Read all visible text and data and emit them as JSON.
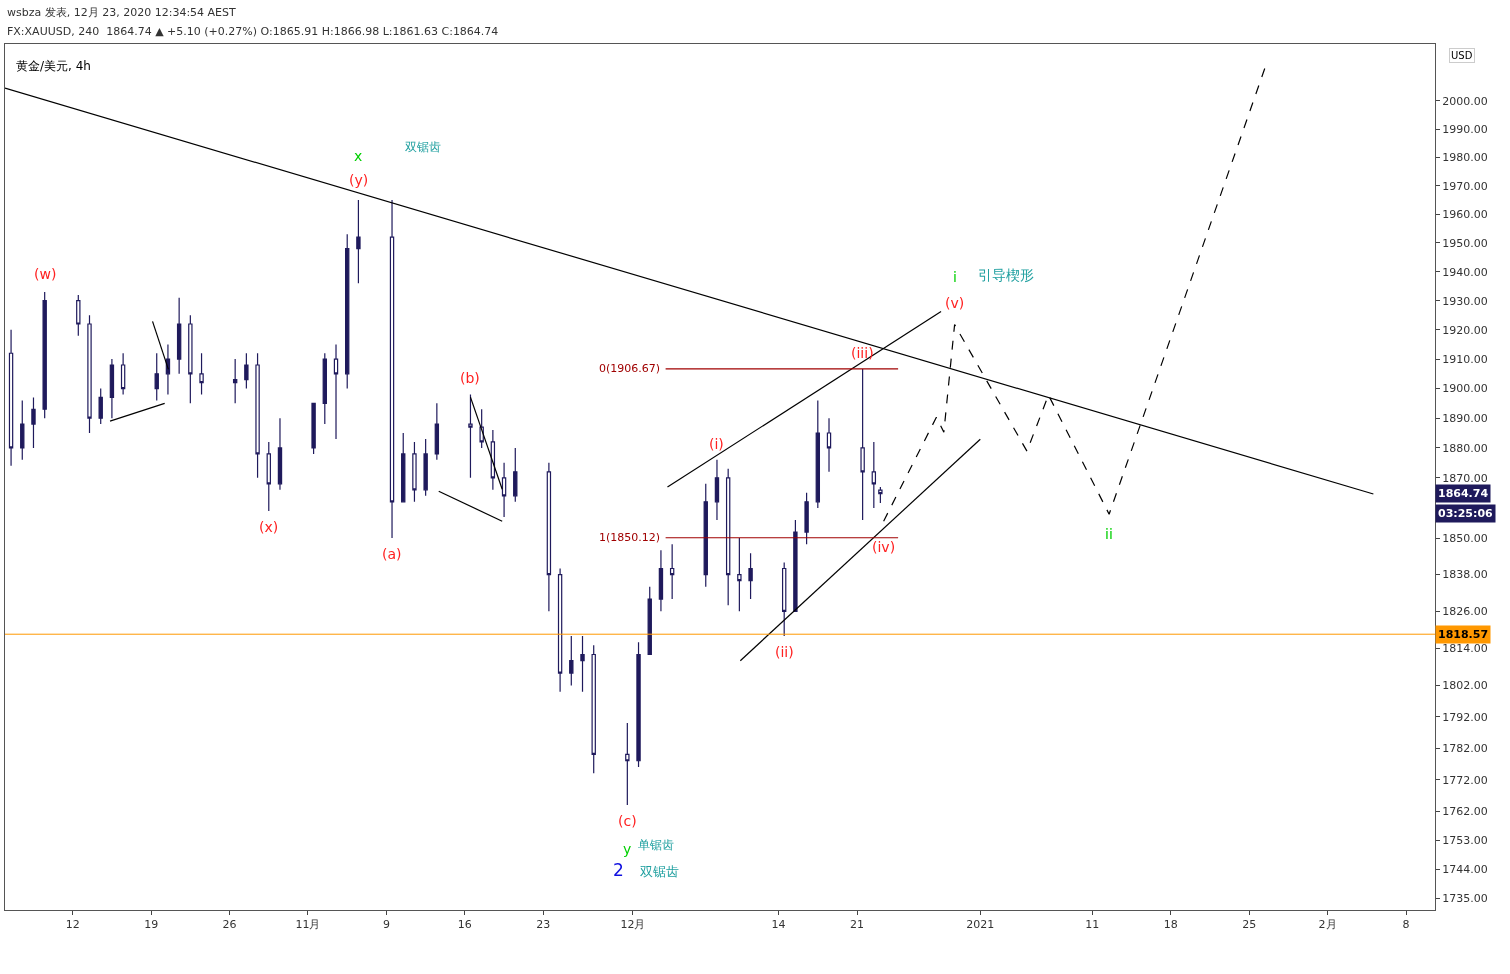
{
  "chart_data": {
    "type": "candlestick",
    "title": "黄金/美元, 4h",
    "ylabel": "USD",
    "log": "y",
    "x": [
      "2020-10-06T12:00",
      "2020-10-07T12:00",
      "2020-10-08T12:00",
      "2020-10-09T12:00",
      "2020-10-12T12:00",
      "2020-10-13T12:00",
      "2020-10-14T12:00",
      "2020-10-15T12:00",
      "2020-10-16T12:00",
      "2020-10-19T12:00",
      "2020-10-20T12:00",
      "2020-10-21T12:00",
      "2020-10-22T12:00",
      "2020-10-23T12:00",
      "2020-10-26T12:00",
      "2020-10-27T12:00",
      "2020-10-28T12:00",
      "2020-10-29T12:00",
      "2020-10-30T12:00",
      "2020-11-02T12:00",
      "2020-11-03T12:00",
      "2020-11-04T12:00",
      "2020-11-05T12:00",
      "2020-11-06T12:00",
      "2020-11-09T12:00",
      "2020-11-10T12:00",
      "2020-11-11T12:00",
      "2020-11-12T12:00",
      "2020-11-13T12:00",
      "2020-11-16T12:00",
      "2020-11-17T12:00",
      "2020-11-18T12:00",
      "2020-11-19T12:00",
      "2020-11-20T12:00",
      "2020-11-23T12:00",
      "2020-11-24T12:00",
      "2020-11-25T12:00",
      "2020-11-26T12:00",
      "2020-11-27T12:00",
      "2020-11-30T12:00",
      "2020-12-01T12:00",
      "2020-12-02T12:00",
      "2020-12-03T12:00",
      "2020-12-04T12:00",
      "2020-12-07T12:00",
      "2020-12-08T12:00",
      "2020-12-09T12:00",
      "2020-12-10T12:00",
      "2020-12-11T12:00",
      "2020-12-14T12:00",
      "2020-12-15T12:00",
      "2020-12-16T12:00",
      "2020-12-17T12:00",
      "2020-12-18T12:00",
      "2020-12-21T12:00",
      "2020-12-22T12:00",
      "2020-12-23T02:00"
    ],
    "ohlc": [
      [
        1912,
        1920,
        1874,
        1880
      ],
      [
        1880,
        1896,
        1876,
        1888
      ],
      [
        1888,
        1897,
        1880,
        1893
      ],
      [
        1893,
        1933,
        1890,
        1930
      ],
      [
        1930,
        1932,
        1918,
        1922
      ],
      [
        1922,
        1925,
        1885,
        1890
      ],
      [
        1890,
        1900,
        1888,
        1897
      ],
      [
        1897,
        1910,
        1890,
        1908
      ],
      [
        1908,
        1912,
        1898,
        1900
      ],
      [
        1900,
        1912,
        1896,
        1905
      ],
      [
        1905,
        1915,
        1898,
        1910
      ],
      [
        1910,
        1931,
        1905,
        1922
      ],
      [
        1922,
        1925,
        1895,
        1905
      ],
      [
        1905,
        1912,
        1898,
        1902
      ],
      [
        1902,
        1910,
        1895,
        1903
      ],
      [
        1903,
        1912,
        1900,
        1908
      ],
      [
        1908,
        1912,
        1870,
        1878
      ],
      [
        1878,
        1882,
        1859,
        1868
      ],
      [
        1868,
        1890,
        1866,
        1880
      ],
      [
        1880,
        1895,
        1878,
        1895
      ],
      [
        1895,
        1912,
        1888,
        1910
      ],
      [
        1910,
        1915,
        1883,
        1905
      ],
      [
        1905,
        1953,
        1900,
        1948
      ],
      [
        1948,
        1965,
        1936,
        1952
      ],
      [
        1952,
        1965,
        1850,
        1862
      ],
      [
        1862,
        1885,
        1862,
        1878
      ],
      [
        1878,
        1882,
        1862,
        1866
      ],
      [
        1866,
        1883,
        1864,
        1878
      ],
      [
        1878,
        1895,
        1876,
        1888
      ],
      [
        1888,
        1898,
        1870,
        1887
      ],
      [
        1887,
        1893,
        1880,
        1882
      ],
      [
        1882,
        1886,
        1866,
        1870
      ],
      [
        1870,
        1875,
        1857,
        1864
      ],
      [
        1864,
        1880,
        1862,
        1872
      ],
      [
        1872,
        1875,
        1826,
        1838
      ],
      [
        1838,
        1840,
        1800,
        1806
      ],
      [
        1806,
        1818,
        1802,
        1810
      ],
      [
        1810,
        1818,
        1800,
        1812
      ],
      [
        1812,
        1815,
        1774,
        1780
      ],
      [
        1780,
        1790,
        1764,
        1778
      ],
      [
        1778,
        1816,
        1776,
        1812
      ],
      [
        1812,
        1834,
        1812,
        1830
      ],
      [
        1830,
        1846,
        1826,
        1840
      ],
      [
        1840,
        1848,
        1830,
        1838
      ],
      [
        1838,
        1868,
        1834,
        1862
      ],
      [
        1862,
        1876,
        1856,
        1870
      ],
      [
        1870,
        1873,
        1828,
        1838
      ],
      [
        1838,
        1850,
        1826,
        1836
      ],
      [
        1836,
        1845,
        1830,
        1840
      ],
      [
        1840,
        1842,
        1818,
        1826
      ],
      [
        1826,
        1856,
        1826,
        1852
      ],
      [
        1852,
        1865,
        1848,
        1862
      ],
      [
        1862,
        1896,
        1860,
        1885
      ],
      [
        1885,
        1890,
        1872,
        1880
      ],
      [
        1880,
        1906.67,
        1856,
        1872
      ],
      [
        1872,
        1882,
        1860,
        1868
      ],
      [
        1865.91,
        1866.98,
        1861.63,
        1864.74
      ]
    ],
    "series": [
      {
        "type": "line",
        "color": "#000000",
        "x": [
          "2020-10-05T23:00",
          "2021-02-05T02:00"
        ],
        "values": [
          2004.6,
          1864.6
        ]
      },
      {
        "type": "line",
        "color": "#000000",
        "x": [
          "2020-12-04T02:00",
          "2020-12-28T12:00"
        ],
        "values": [
          1866.9,
          1926.3
        ]
      },
      {
        "type": "line",
        "color": "#000000",
        "x": [
          "2020-12-10T14:00",
          "2021-01-01T00:00"
        ],
        "values": [
          1810.0,
          1882.9
        ]
      },
      {
        "type": "line",
        "color": "#000000",
        "x": [
          "2020-10-15T08:00",
          "2020-10-20T05:00"
        ],
        "values": [
          1889.0,
          1895.0
        ]
      },
      {
        "type": "line",
        "color": "#000000",
        "x": [
          "2020-10-19T03:00",
          "2020-10-20T13:00"
        ],
        "values": [
          1922.9,
          1906.5
        ]
      },
      {
        "type": "line",
        "color": "#000000",
        "x": [
          "2020-11-13T16:00",
          "2020-11-19T08:00"
        ],
        "values": [
          1865.5,
          1855.6
        ]
      },
      {
        "type": "line",
        "color": "#000000",
        "x": [
          "2020-11-16T12:00",
          "2020-11-19T08:00"
        ],
        "values": [
          1897.1,
          1866.2
        ]
      },
      {
        "type": "line",
        "color": "#a00000",
        "x": [
          "2020-12-03T22:00",
          "2020-12-24T16:00"
        ],
        "values": [
          1906.67,
          1906.67
        ]
      },
      {
        "type": "line",
        "color": "#a00000",
        "x": [
          "2020-12-03T22:00",
          "2020-12-24T16:00"
        ],
        "values": [
          1850.12,
          1850.12
        ]
      },
      {
        "type": "line",
        "color": "#000000",
        "line_style": "dashed",
        "x": [
          "2020-12-23T09:00",
          "2020-12-28T02:00",
          "2020-12-28T18:00",
          "2020-12-29T17:00",
          "2021-01-05T04:00",
          "2021-01-07T02:00",
          "2021-01-12T12:00",
          "2021-01-26T12:00"
        ],
        "values": [
          1855.6,
          1890.3,
          1885.3,
          1921.8,
          1878.9,
          1897.8,
          1857.9,
          2012.9
        ]
      }
    ],
    "ref_lines": [
      {
        "axis": "y",
        "value": 1818.57,
        "label": "1818.57",
        "color": "#ff9800"
      }
    ],
    "xlim": [
      "2020-10-05T23:00",
      "2021-02-10T14:00"
    ],
    "xticks": [
      {
        "value": "2020-10-12",
        "label": "12"
      },
      {
        "value": "2020-10-19",
        "label": "19"
      },
      {
        "value": "2020-10-26",
        "label": "26"
      },
      {
        "value": "2020-11-02",
        "label": "11月"
      },
      {
        "value": "2020-11-09",
        "label": "9"
      },
      {
        "value": "2020-11-16",
        "label": "16"
      },
      {
        "value": "2020-11-23",
        "label": "23"
      },
      {
        "value": "2020-12-01",
        "label": "12月"
      },
      {
        "value": "2020-12-14",
        "label": "14"
      },
      {
        "value": "2020-12-21",
        "label": "21"
      },
      {
        "value": "2021-01-01",
        "label": "2021"
      },
      {
        "value": "2021-01-11",
        "label": "11"
      },
      {
        "value": "2021-01-18",
        "label": "18"
      },
      {
        "value": "2021-01-25",
        "label": "25"
      },
      {
        "value": "2021-02-01",
        "label": "2月"
      },
      {
        "value": "2021-02-08",
        "label": "8"
      }
    ],
    "ylim": [
      1731.3,
      2020.4
    ],
    "yticks": [
      {
        "value": 2000,
        "label": "2000.00"
      },
      {
        "value": 1990,
        "label": "1990.00"
      },
      {
        "value": 1980,
        "label": "1980.00"
      },
      {
        "value": 1970,
        "label": "1970.00"
      },
      {
        "value": 1960,
        "label": "1960.00"
      },
      {
        "value": 1950,
        "label": "1950.00"
      },
      {
        "value": 1940,
        "label": "1940.00"
      },
      {
        "value": 1930,
        "label": "1930.00"
      },
      {
        "value": 1920,
        "label": "1920.00"
      },
      {
        "value": 1910,
        "label": "1910.00"
      },
      {
        "value": 1900,
        "label": "1900.00"
      },
      {
        "value": 1890,
        "label": "1890.00"
      },
      {
        "value": 1880,
        "label": "1880.00"
      },
      {
        "value": 1870,
        "label": "1870.00"
      },
      {
        "value": 1864.74,
        "label": "1864.74"
      },
      {
        "value": 1850,
        "label": "1850.00"
      },
      {
        "value": 1838,
        "label": "1838.00"
      },
      {
        "value": 1826,
        "label": "1826.00"
      },
      {
        "value": 1814,
        "label": "1814.00"
      },
      {
        "value": 1802,
        "label": "1802.00"
      },
      {
        "value": 1792,
        "label": "1792.00"
      },
      {
        "value": 1782,
        "label": "1782.00"
      },
      {
        "value": 1772,
        "label": "1772.00"
      },
      {
        "value": 1762,
        "label": "1762.00"
      },
      {
        "value": 1753,
        "label": "1753.00"
      },
      {
        "value": 1744,
        "label": "1744.00"
      },
      {
        "value": 1735,
        "label": "1735.00"
      }
    ],
    "annotations": [
      "wsbza 发表, 12月 23, 2020 12:34:54 AEST",
      "FX:XAUUSD, 240  1864.74 ▲ +5.10 (+0.27%) O:1865.91 H:1866.98 L:1861.63 C:1864.74",
      "03:25:06",
      "双锯齿",
      "单锯齿",
      "2",
      "双锯齿",
      "引导楔形",
      {
        "text": "(w)",
        "x": "2020-10-09T12:00",
        "y": 1933
      },
      {
        "text": "x",
        "x": "2020-11-06T12:00",
        "y": 1965
      },
      {
        "text": "(y)",
        "x": "2020-11-06T12:00",
        "y": 1965
      },
      {
        "text": "(x)",
        "x": "2020-10-29T12:00",
        "y": 1859
      },
      {
        "text": "(a)",
        "x": "2020-11-09T12:00",
        "y": 1850
      },
      {
        "text": "(b)",
        "x": "2020-11-16T12:00",
        "y": 1898
      },
      {
        "text": "(c)",
        "x": "2020-11-30T12:00",
        "y": 1764
      },
      {
        "text": "y",
        "x": "2020-11-30T12:00",
        "y": 1764
      },
      {
        "text": "(i)",
        "x": "2020-12-08T12:00",
        "y": 1876
      },
      {
        "text": "(ii)",
        "x": "2020-12-14T12:00",
        "y": 1818
      },
      {
        "text": "(iii)",
        "x": "2020-12-21T12:00",
        "y": 1906.67
      },
      {
        "text": "(iv)",
        "x": "2020-12-23T09:00",
        "y": 1855.6
      },
      {
        "text": "(v)",
        "x": "2020-12-29T17:00",
        "y": 1921.8
      },
      {
        "text": "i",
        "x": "2020-12-29T17:00",
        "y": 1921.8
      },
      {
        "text": "ii",
        "x": "2021-01-12T12:00",
        "y": 1857.9
      },
      {
        "text": "0(1906.67)",
        "x": "2020-12-03T22:00",
        "y": 1906.67
      },
      {
        "text": "1(1850.12)",
        "x": "2020-12-03T22:00",
        "y": 1850.12
      }
    ]
  }
}
